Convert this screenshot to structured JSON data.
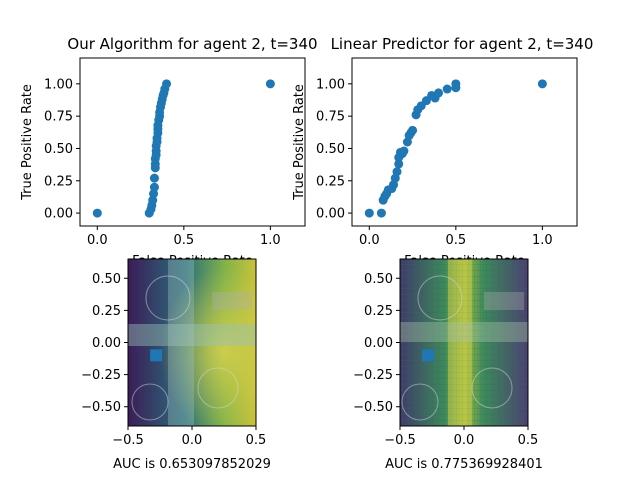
{
  "chart_data": [
    {
      "type": "scatter",
      "title": "Our Algorithm for agent 2, t=340",
      "xlabel": "False Positive Rate",
      "ylabel": "True Positive Rate",
      "xlim": [
        -0.1,
        1.2
      ],
      "ylim": [
        -0.1,
        1.2
      ],
      "xticks": [
        0.0,
        0.5,
        1.0
      ],
      "yticks": [
        0.0,
        0.25,
        0.5,
        0.75,
        1.0
      ],
      "xtick_labels": [
        "0.0",
        "0.5",
        "1.0"
      ],
      "ytick_labels": [
        "0.00",
        "0.25",
        "0.50",
        "0.75",
        "1.00"
      ],
      "color": "#1f77b4",
      "x": [
        0.0,
        0.3,
        0.31,
        0.315,
        0.32,
        0.325,
        0.33,
        0.33,
        0.335,
        0.335,
        0.335,
        0.34,
        0.34,
        0.34,
        0.345,
        0.345,
        0.35,
        0.35,
        0.35,
        0.355,
        0.36,
        0.36,
        0.365,
        0.37,
        0.375,
        0.38,
        0.385,
        0.39,
        0.4,
        1.0
      ],
      "y": [
        0.0,
        0.0,
        0.03,
        0.06,
        0.1,
        0.15,
        0.2,
        0.27,
        0.35,
        0.38,
        0.42,
        0.45,
        0.48,
        0.52,
        0.55,
        0.58,
        0.62,
        0.65,
        0.68,
        0.72,
        0.75,
        0.78,
        0.82,
        0.85,
        0.88,
        0.91,
        0.93,
        0.96,
        1.0,
        1.0
      ]
    },
    {
      "type": "scatter",
      "title": "Linear Predictor for agent 2, t=340",
      "xlabel": "False Positive Rate",
      "ylabel": "True Positive Rate",
      "xlim": [
        -0.1,
        1.2
      ],
      "ylim": [
        -0.1,
        1.2
      ],
      "xticks": [
        0.0,
        0.5,
        1.0
      ],
      "yticks": [
        0.0,
        0.25,
        0.5,
        0.75,
        1.0
      ],
      "xtick_labels": [
        "0.0",
        "0.5",
        "1.0"
      ],
      "ytick_labels": [
        "0.00",
        "0.25",
        "0.50",
        "0.75",
        "1.00"
      ],
      "color": "#1f77b4",
      "x": [
        0.0,
        0.07,
        0.08,
        0.09,
        0.1,
        0.11,
        0.13,
        0.14,
        0.15,
        0.16,
        0.17,
        0.17,
        0.18,
        0.19,
        0.2,
        0.22,
        0.23,
        0.24,
        0.25,
        0.27,
        0.28,
        0.3,
        0.33,
        0.36,
        0.38,
        0.4,
        0.45,
        0.5,
        0.5,
        1.0
      ],
      "y": [
        0.0,
        0.0,
        0.1,
        0.13,
        0.15,
        0.18,
        0.19,
        0.22,
        0.27,
        0.32,
        0.38,
        0.43,
        0.47,
        0.46,
        0.48,
        0.55,
        0.6,
        0.62,
        0.64,
        0.76,
        0.8,
        0.83,
        0.87,
        0.91,
        0.89,
        0.93,
        0.96,
        0.97,
        1.0,
        1.0
      ]
    },
    {
      "type": "heatmap",
      "xlabel": "AUC is 0.653097852029",
      "xlim": [
        -0.5,
        0.5
      ],
      "ylim": [
        -0.65,
        0.65
      ],
      "xticks": [
        -0.5,
        0.0,
        0.5
      ],
      "yticks": [
        -0.5,
        -0.25,
        0.0,
        0.25,
        0.5
      ],
      "xtick_labels": [
        "−0.5",
        "0.0",
        "0.5"
      ],
      "ytick_labels": [
        "−0.50",
        "−0.25",
        "0.00",
        "0.25",
        "0.50"
      ],
      "marker": {
        "x": -0.28,
        "y": -0.1
      },
      "marker_color": "#1f77b4"
    },
    {
      "type": "heatmap",
      "xlabel": "AUC is 0.775369928401",
      "xlim": [
        -0.5,
        0.5
      ],
      "ylim": [
        -0.65,
        0.65
      ],
      "xticks": [
        -0.5,
        0.0,
        0.5
      ],
      "yticks": [
        -0.5,
        -0.25,
        0.0,
        0.25,
        0.5
      ],
      "xtick_labels": [
        "−0.5",
        "0.0",
        "0.5"
      ],
      "ytick_labels": [
        "−0.50",
        "−0.25",
        "0.00",
        "0.25",
        "0.50"
      ],
      "marker": {
        "x": -0.28,
        "y": -0.1
      },
      "marker_color": "#1f77b4"
    }
  ]
}
